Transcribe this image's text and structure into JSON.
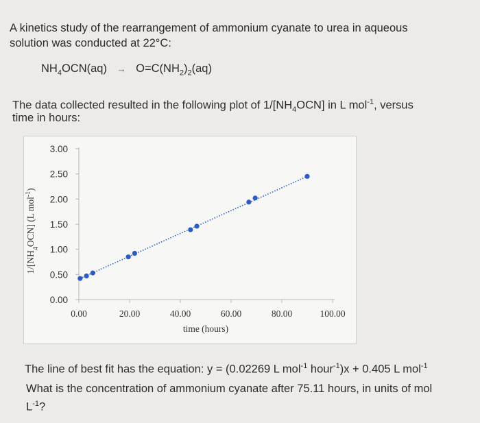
{
  "intro_line1": "A kinetics study of the rearrangement of ammonium cyanate to urea in aqueous",
  "intro_line2": "solution was conducted at 22°C:",
  "reaction": {
    "reactant": "NH4OCN(aq)",
    "arrow": "→",
    "product": "O=C(NH2)2(aq)"
  },
  "data_line1": "The data collected resulted in the following plot of 1/[NH4OCN] in L mol-1, versus",
  "data_line2": "time in hours:",
  "chart_data": {
    "type": "scatter",
    "xlabel": "time (hours)",
    "ylabel": "1/[NH4OCN] (L mol-1)",
    "xlim": [
      0,
      100
    ],
    "ylim": [
      0,
      3
    ],
    "xticks": [
      "0.00",
      "20.00",
      "40.00",
      "60.00",
      "80.00",
      "100.00"
    ],
    "yticks": [
      "0.00",
      "0.50",
      "1.00",
      "1.50",
      "2.00",
      "2.50",
      "3.00"
    ],
    "series": [
      {
        "color": "#2b5cc4",
        "points": [
          {
            "x": 0.5,
            "y": 0.42
          },
          {
            "x": 3.0,
            "y": 0.47
          },
          {
            "x": 5.5,
            "y": 0.53
          },
          {
            "x": 19.5,
            "y": 0.85
          },
          {
            "x": 22.0,
            "y": 0.92
          },
          {
            "x": 44.0,
            "y": 1.39
          },
          {
            "x": 46.5,
            "y": 1.46
          },
          {
            "x": 67.0,
            "y": 1.94
          },
          {
            "x": 69.5,
            "y": 2.02
          },
          {
            "x": 90.0,
            "y": 2.45
          }
        ]
      }
    ],
    "trendline": {
      "style": "dotted",
      "color": "#2b5cc4"
    }
  },
  "best_fit_line": "The line of best fit has the equation: y = (0.02269 L mol-1 hour-1)x + 0.405 L mol-1",
  "question_line1": "What is the concentration of ammonium cyanate after 75.11 hours, in units of mol",
  "question_line2": "L-1?"
}
